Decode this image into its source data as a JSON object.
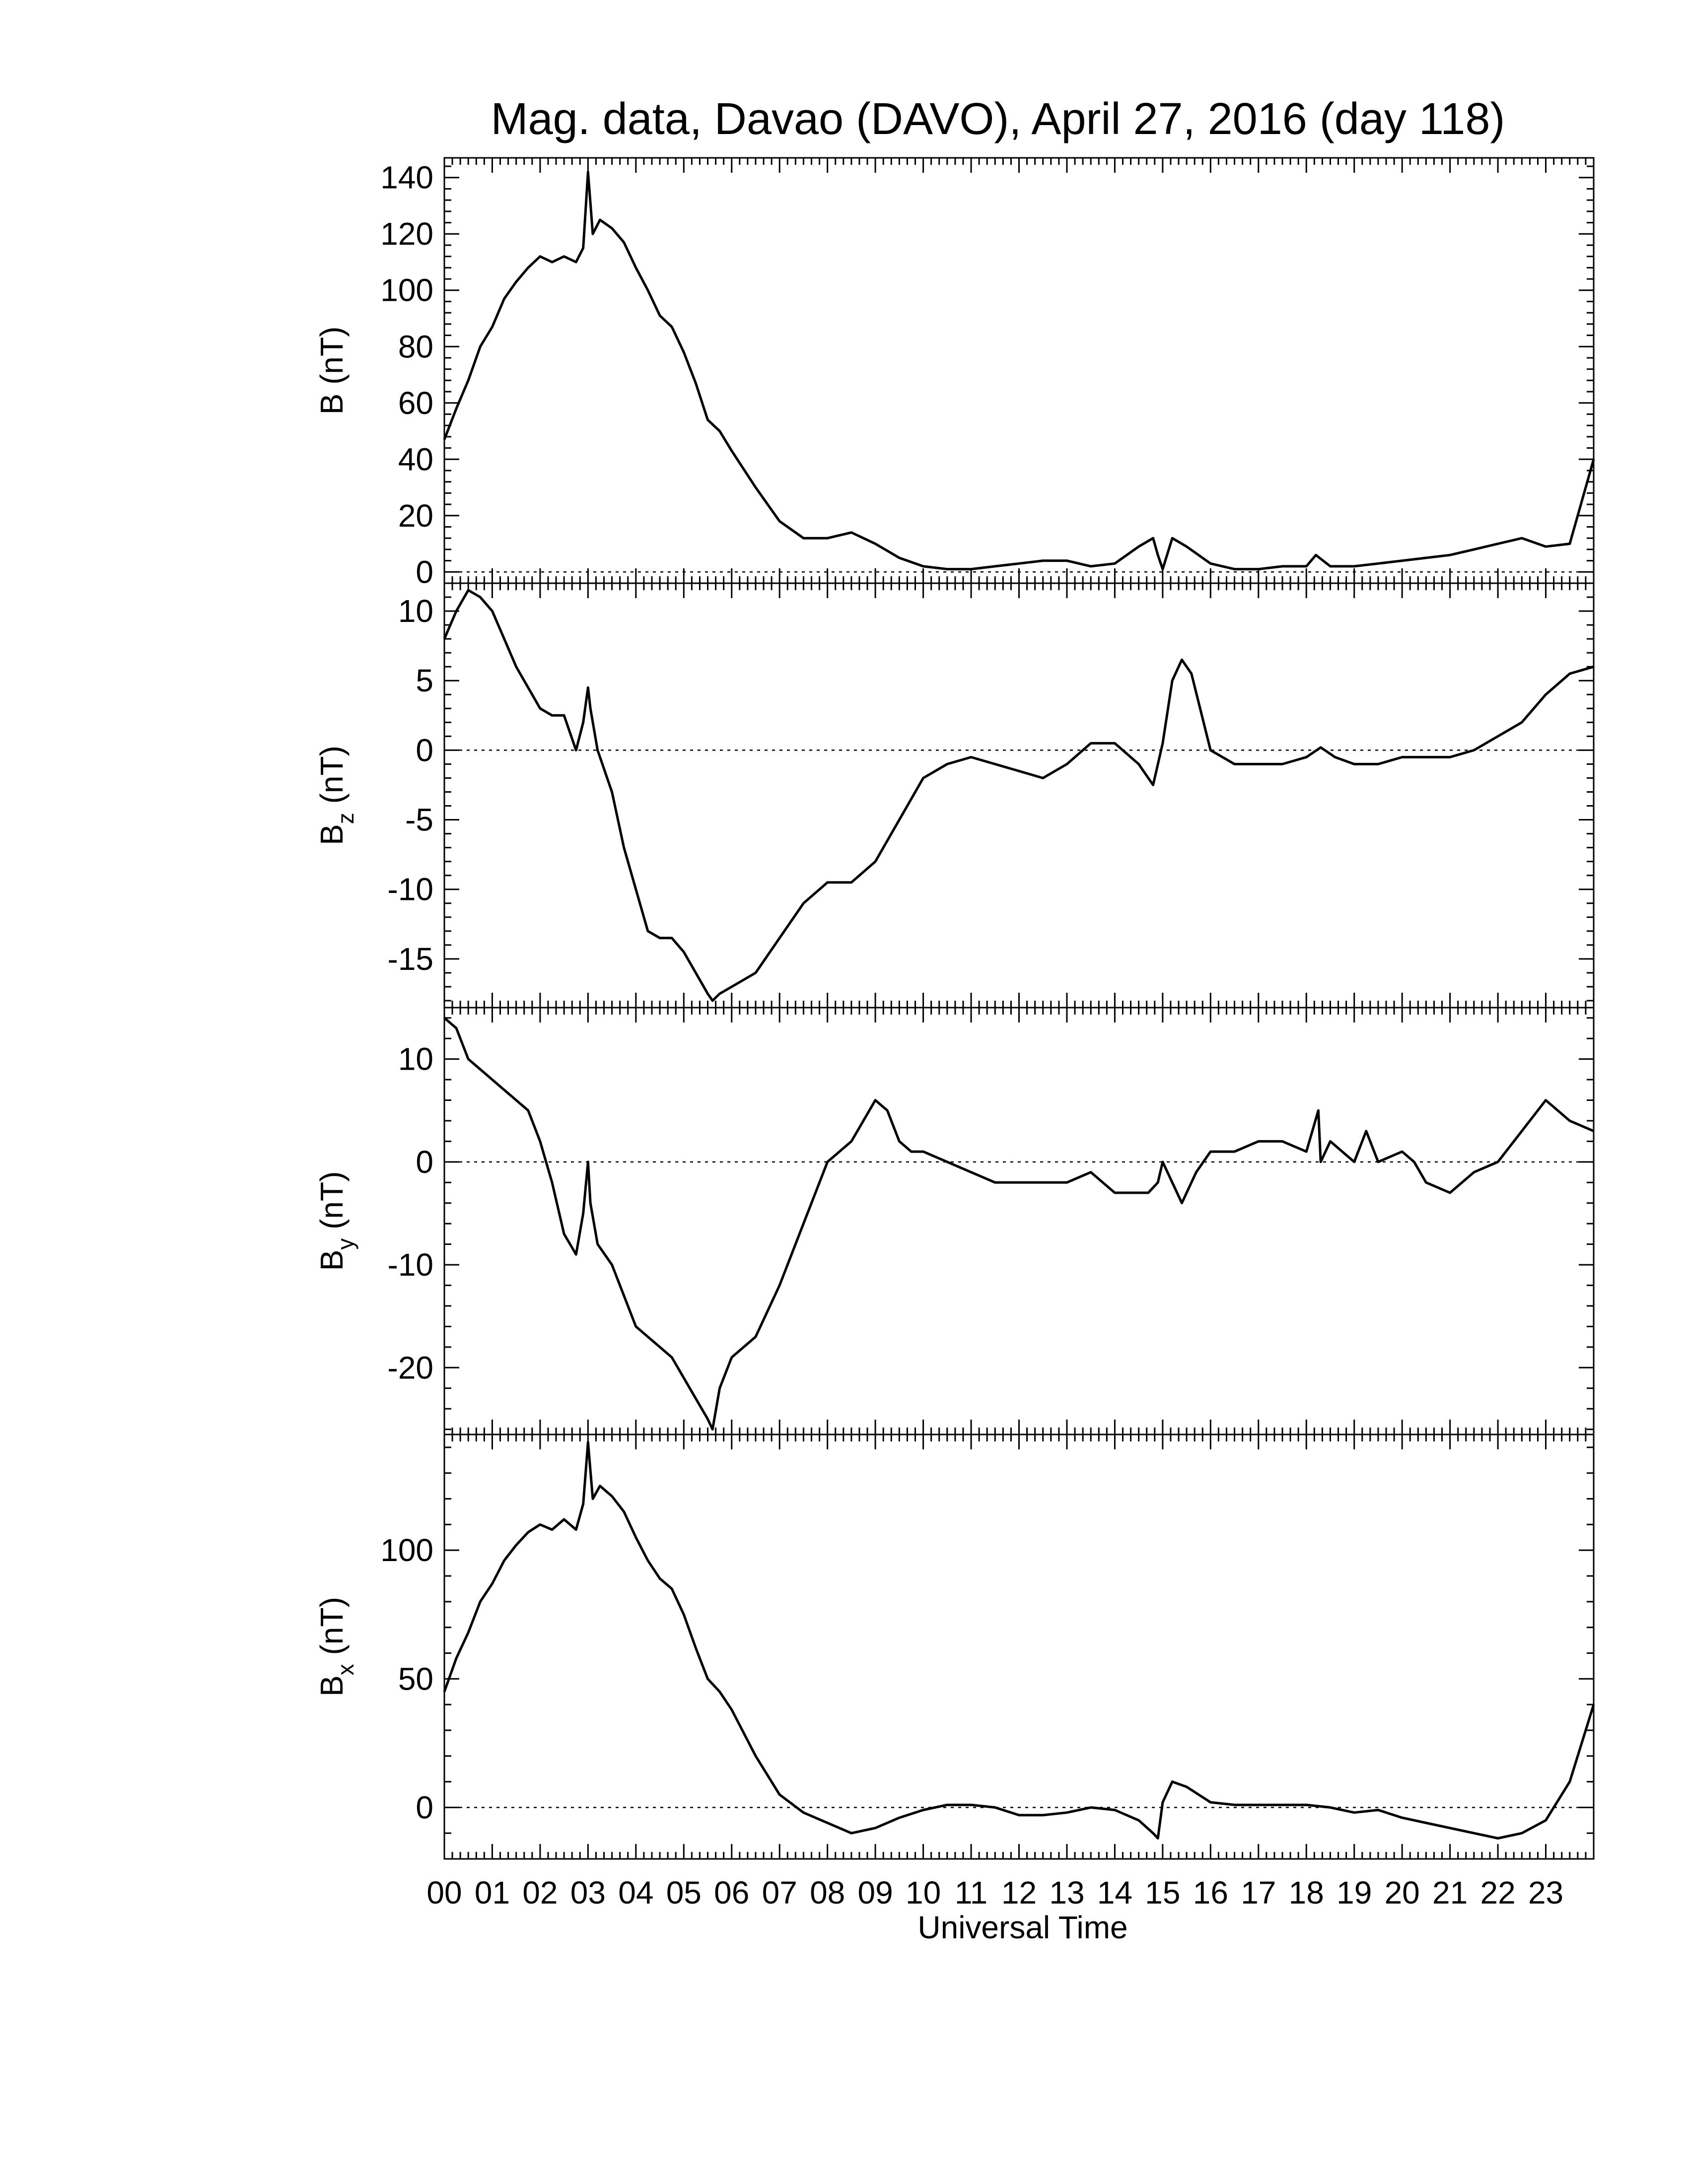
{
  "figure": {
    "title": "Mag. data, Davao (DAVO), April 27, 2016 (day 118)",
    "xlabel": "Universal Time",
    "x_tick_labels": [
      "00",
      "01",
      "02",
      "03",
      "04",
      "05",
      "06",
      "07",
      "08",
      "09",
      "10",
      "11",
      "12",
      "13",
      "14",
      "15",
      "16",
      "17",
      "18",
      "19",
      "20",
      "21",
      "22",
      "23"
    ]
  },
  "chart_data": [
    {
      "type": "line",
      "panel": "B",
      "ylabel": "B (nT)",
      "ylim": [
        -4,
        147
      ],
      "yticks": [
        0,
        20,
        40,
        60,
        80,
        100,
        120,
        140
      ],
      "xlim": [
        0,
        24
      ],
      "zero_line": "dotted",
      "series": [
        {
          "x": [
            0,
            0.25,
            0.5,
            0.75,
            1,
            1.25,
            1.5,
            1.75,
            2,
            2.25,
            2.5,
            2.75,
            2.9,
            3.0,
            3.1,
            3.25,
            3.5,
            3.75,
            4,
            4.25,
            4.5,
            4.75,
            5,
            5.25,
            5.5,
            5.75,
            6,
            6.5,
            7,
            7.5,
            8,
            8.5,
            9,
            9.5,
            10,
            10.5,
            11,
            11.5,
            12,
            12.5,
            13,
            13.5,
            14,
            14.5,
            14.8,
            14.9,
            15.0,
            15.2,
            15.5,
            16,
            16.5,
            17,
            17.5,
            18,
            18.2,
            18.5,
            19,
            19.5,
            20,
            20.5,
            21,
            21.5,
            22,
            22.5,
            23,
            23.5,
            24
          ],
          "y": [
            47,
            58,
            68,
            80,
            87,
            97,
            103,
            108,
            112,
            110,
            112,
            110,
            115,
            142,
            120,
            125,
            122,
            117,
            108,
            100,
            91,
            87,
            78,
            67,
            54,
            50,
            43,
            30,
            18,
            12,
            12,
            14,
            10,
            5,
            2,
            1,
            1,
            2,
            3,
            4,
            4,
            2,
            3,
            9,
            12,
            6,
            1,
            12,
            9,
            3,
            1,
            1,
            2,
            2,
            6,
            2,
            2,
            3,
            4,
            5,
            6,
            8,
            10,
            12,
            9,
            10,
            40
          ]
        }
      ]
    },
    {
      "type": "line",
      "panel": "Bz",
      "ylabel": "Bz (nT)",
      "ylim": [
        -18.5,
        12
      ],
      "yticks": [
        -15,
        -10,
        -5,
        0,
        5,
        10
      ],
      "xlim": [
        0,
        24
      ],
      "zero_line": "dotted",
      "series": [
        {
          "x": [
            0,
            0.25,
            0.5,
            0.75,
            1,
            1.25,
            1.5,
            1.75,
            2,
            2.25,
            2.5,
            2.75,
            2.9,
            3.0,
            3.05,
            3.2,
            3.5,
            3.75,
            4,
            4.25,
            4.5,
            4.75,
            5,
            5.25,
            5.5,
            5.6,
            5.75,
            6,
            6.5,
            7,
            7.5,
            8,
            8.5,
            9,
            9.5,
            10,
            10.5,
            11,
            11.5,
            12,
            12.5,
            13,
            13.5,
            14,
            14.5,
            14.8,
            15.0,
            15.2,
            15.4,
            15.6,
            16,
            16.5,
            17,
            17.5,
            18,
            18.3,
            18.6,
            19,
            19.5,
            20,
            20.5,
            21,
            21.5,
            22,
            22.5,
            23,
            23.5,
            24
          ],
          "y": [
            8,
            10,
            11.5,
            11,
            10,
            8,
            6,
            4.5,
            3,
            2.5,
            2.5,
            0,
            2,
            4.5,
            3,
            0,
            -3,
            -7,
            -10,
            -13,
            -13.5,
            -13.5,
            -14.5,
            -16,
            -17.5,
            -18,
            -17.5,
            -17,
            -16,
            -13.5,
            -11,
            -9.5,
            -9.5,
            -8,
            -5,
            -2,
            -1,
            -0.5,
            -1,
            -1.5,
            -2,
            -1,
            0.5,
            0.5,
            -1,
            -2.5,
            0.5,
            5,
            6.5,
            5.5,
            0,
            -1,
            -1,
            -1,
            -0.5,
            0.2,
            -0.5,
            -1,
            -1,
            -0.5,
            -0.5,
            -0.5,
            0,
            1,
            2,
            4,
            5.5,
            6
          ]
        }
      ]
    },
    {
      "type": "line",
      "panel": "By",
      "ylabel": "By (nT)",
      "ylim": [
        -26.5,
        15
      ],
      "yticks": [
        -20,
        -10,
        0,
        10
      ],
      "xlim": [
        0,
        24
      ],
      "zero_line": "dotted",
      "series": [
        {
          "x": [
            0,
            0.25,
            0.5,
            0.75,
            1,
            1.25,
            1.5,
            1.75,
            2,
            2.25,
            2.5,
            2.75,
            2.9,
            3.0,
            3.05,
            3.2,
            3.5,
            3.75,
            4,
            4.25,
            4.5,
            4.75,
            5,
            5.25,
            5.5,
            5.6,
            5.75,
            6,
            6.5,
            7,
            7.5,
            8,
            8.25,
            8.5,
            8.75,
            9,
            9.25,
            9.5,
            9.75,
            10,
            10.5,
            11,
            11.5,
            12,
            12.5,
            13,
            13.5,
            14,
            14.5,
            14.7,
            14.9,
            15.0,
            15.2,
            15.4,
            15.7,
            16,
            16.5,
            17,
            17.5,
            18,
            18.25,
            18.3,
            18.5,
            19,
            19.25,
            19.5,
            20,
            20.25,
            20.5,
            21,
            21.5,
            22,
            22.5,
            23,
            23.5,
            24
          ],
          "y": [
            14,
            13,
            10,
            9,
            8,
            7,
            6,
            5,
            2,
            -2,
            -7,
            -9,
            -5,
            0,
            -4,
            -8,
            -10,
            -13,
            -16,
            -17,
            -18,
            -19,
            -21,
            -23,
            -25,
            -26,
            -22,
            -19,
            -17,
            -12,
            -6,
            0,
            1,
            2,
            4,
            6,
            5,
            2,
            1,
            1,
            0,
            -1,
            -2,
            -2,
            -2,
            -2,
            -1,
            -3,
            -3,
            -3,
            -2,
            0,
            -2,
            -4,
            -1,
            1,
            1,
            2,
            2,
            1,
            5,
            0,
            2,
            0,
            3,
            0,
            1,
            0,
            -2,
            -3,
            -1,
            0,
            3,
            6,
            4,
            3
          ]
        }
      ]
    },
    {
      "type": "line",
      "panel": "Bx",
      "ylabel": "Bx (nT)",
      "ylim": [
        -20,
        145
      ],
      "yticks": [
        0,
        50,
        100
      ],
      "xlim": [
        0,
        24
      ],
      "zero_line": "dotted",
      "series": [
        {
          "x": [
            0,
            0.25,
            0.5,
            0.75,
            1,
            1.25,
            1.5,
            1.75,
            2,
            2.25,
            2.5,
            2.75,
            2.9,
            3.0,
            3.1,
            3.25,
            3.5,
            3.75,
            4,
            4.25,
            4.5,
            4.75,
            5,
            5.25,
            5.5,
            5.75,
            6,
            6.5,
            7,
            7.5,
            8,
            8.5,
            9,
            9.5,
            10,
            10.5,
            11,
            11.5,
            12,
            12.5,
            13,
            13.5,
            14,
            14.5,
            14.8,
            14.9,
            15.0,
            15.2,
            15.5,
            16,
            16.5,
            17,
            17.5,
            18,
            18.5,
            19,
            19.5,
            20,
            20.5,
            21,
            21.5,
            22,
            22.5,
            23,
            23.5,
            24
          ],
          "y": [
            45,
            58,
            68,
            80,
            87,
            96,
            102,
            107,
            110,
            108,
            112,
            108,
            118,
            142,
            120,
            125,
            121,
            115,
            105,
            96,
            89,
            85,
            75,
            62,
            50,
            45,
            38,
            20,
            5,
            -2,
            -6,
            -10,
            -8,
            -4,
            -1,
            1,
            1,
            0,
            -3,
            -3,
            -2,
            0,
            -1,
            -5,
            -10,
            -12,
            2,
            10,
            8,
            2,
            1,
            1,
            1,
            1,
            0,
            -2,
            -1,
            -4,
            -6,
            -8,
            -10,
            -12,
            -10,
            -5,
            10,
            40
          ]
        }
      ]
    }
  ]
}
